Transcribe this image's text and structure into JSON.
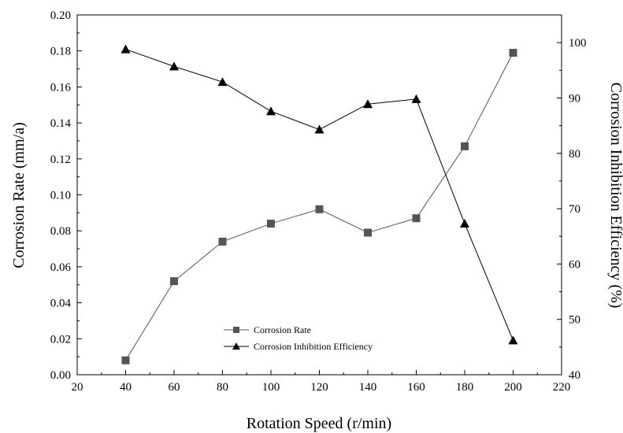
{
  "chart_data": {
    "type": "line",
    "title": "",
    "xlabel": "Rotation Speed (r/min)",
    "ylabel": "Corrosion Rate (mm/a)",
    "y2label": "Corrosion Inhibition Efficiency (%)",
    "xlim": [
      20,
      220
    ],
    "ylim": [
      0.0,
      0.2
    ],
    "y2lim": [
      40,
      105
    ],
    "x_ticks": [
      20,
      40,
      60,
      80,
      100,
      120,
      140,
      160,
      180,
      200,
      220
    ],
    "x_tick_labels": [
      "20",
      "40",
      "60",
      "80",
      "100",
      "120",
      "140",
      "160",
      "180",
      "200",
      "220"
    ],
    "y_ticks": [
      0.0,
      0.02,
      0.04,
      0.06,
      0.08,
      0.1,
      0.12,
      0.14,
      0.16,
      0.18,
      0.2
    ],
    "y_tick_labels": [
      "0.00",
      "0.02",
      "0.04",
      "0.06",
      "0.08",
      "0.10",
      "0.12",
      "0.14",
      "0.16",
      "0.18",
      "0.20"
    ],
    "y2_ticks": [
      40,
      50,
      60,
      70,
      80,
      90,
      100
    ],
    "y2_tick_labels": [
      "40",
      "50",
      "60",
      "70",
      "80",
      "90",
      "100"
    ],
    "x": [
      40,
      60,
      80,
      100,
      120,
      140,
      160,
      180,
      200
    ],
    "series": [
      {
        "name": "Corrosion Rate",
        "axis": "left",
        "marker": "square",
        "color": "#555555",
        "values": [
          0.008,
          0.052,
          0.074,
          0.084,
          0.092,
          0.079,
          0.087,
          0.127,
          0.179
        ]
      },
      {
        "name": "Corrosion Inhibition Efficiency",
        "axis": "right",
        "marker": "triangle",
        "color": "#000000",
        "values": [
          98.8,
          95.7,
          92.9,
          87.6,
          84.3,
          88.9,
          89.8,
          67.3,
          46.2
        ]
      }
    ],
    "legend_position": "bottom-center",
    "grid": false
  }
}
